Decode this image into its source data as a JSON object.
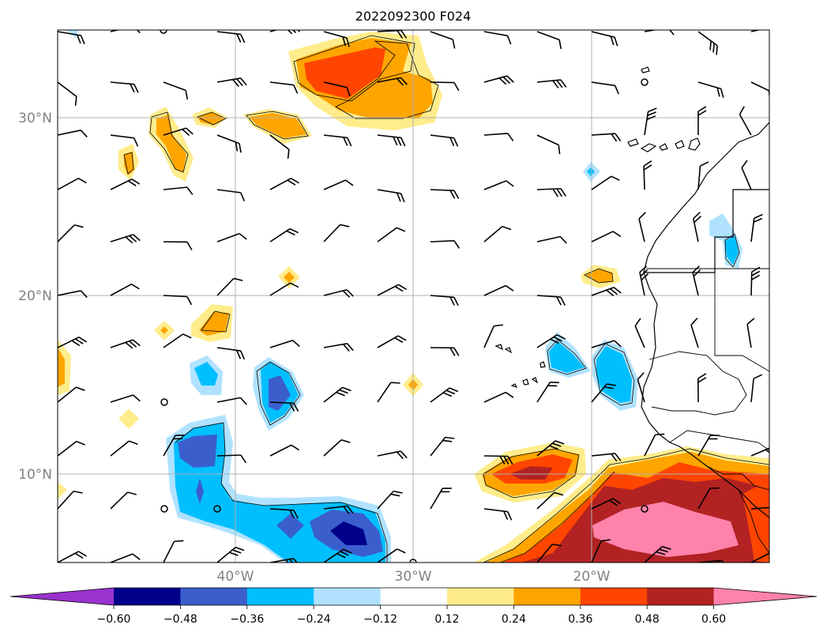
{
  "title": "2022092300 F024",
  "axes": {
    "lat_labels": [
      "30°N",
      "20°N",
      "10°N"
    ],
    "lon_labels": [
      "40°W",
      "30°W",
      "20°W"
    ],
    "lat_values": [
      30,
      20,
      10
    ],
    "lon_values": [
      -40,
      -30,
      -20
    ],
    "lat_range": [
      5,
      35
    ],
    "lon_range": [
      -50,
      -10
    ],
    "grid": true
  },
  "colorbar": {
    "levels": [
      "−0.60",
      "−0.48",
      "−0.36",
      "−0.24",
      "−0.12",
      "0.12",
      "0.24",
      "0.36",
      "0.48",
      "0.60"
    ],
    "colors": [
      "#9a32cd",
      "#00008b",
      "#3a5fcd",
      "#00bfff",
      "#b0e2ff",
      "#ffffff",
      "#ffec8b",
      "#ffa500",
      "#ff4500",
      "#b22222",
      "#ff82ab"
    ],
    "extend": "both"
  },
  "colors": {
    "grid": "#b0b0b0",
    "coast": "#000000"
  }
}
